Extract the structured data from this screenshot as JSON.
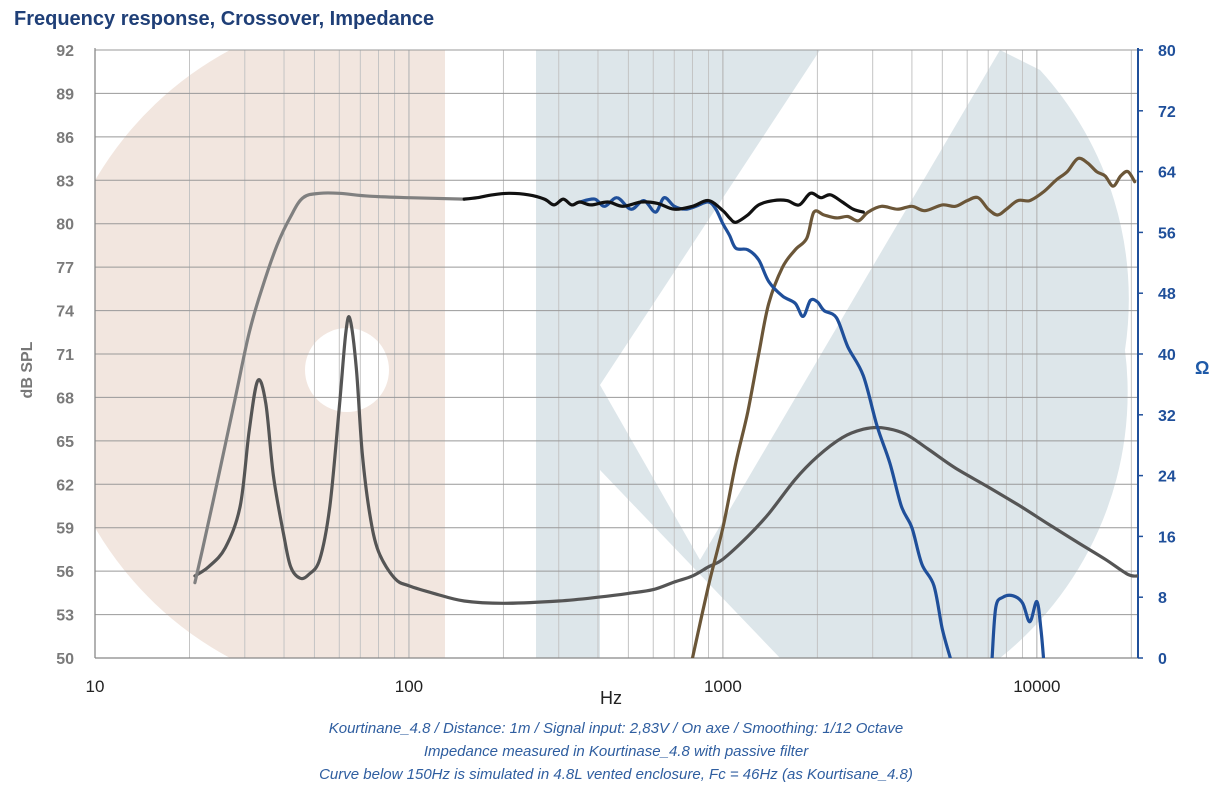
{
  "chart_data": {
    "type": "line",
    "title": "Frequency response, Crossover, Impedance",
    "xlabel": "Hz",
    "ylabel_left": "dB SPL",
    "ylabel_right": "Ω",
    "x_scale": "log",
    "xlim": [
      10,
      21000
    ],
    "ylim_left": [
      50,
      92
    ],
    "ylim_right": [
      0,
      80
    ],
    "x_tick_labels": [
      "10",
      "100",
      "1000",
      "10000"
    ],
    "y_left_ticks": [
      "92",
      "89",
      "86",
      "83",
      "80",
      "77",
      "74",
      "71",
      "68",
      "65",
      "62",
      "59",
      "56",
      "53",
      "50"
    ],
    "y_right_ticks": [
      "80",
      "72",
      "64",
      "56",
      "48",
      "40",
      "32",
      "24",
      "16",
      "8",
      "0"
    ],
    "grid": true,
    "colors": {
      "axis_right": "#1f4f9a",
      "simulated": "#808080",
      "full_system": "#111111",
      "tweeter": "#6b5638",
      "woofer_filtered": "#1f4f9a",
      "impedance": "#555555",
      "watermark_left": "#f2e6df",
      "watermark_right": "#dde6ea"
    },
    "series": [
      {
        "key": "simulated",
        "axis": "left",
        "points": [
          [
            20.8,
            55.2
          ],
          [
            22,
            57.5
          ],
          [
            25,
            63
          ],
          [
            28,
            68
          ],
          [
            31,
            72.5
          ],
          [
            34,
            75.5
          ],
          [
            38,
            78.5
          ],
          [
            42,
            80.5
          ],
          [
            46,
            81.8
          ],
          [
            52,
            82.1
          ],
          [
            60,
            82.1
          ],
          [
            75,
            81.9
          ],
          [
            100,
            81.8
          ],
          [
            150,
            81.7
          ]
        ]
      },
      {
        "key": "full_system",
        "axis": "left",
        "points": [
          [
            150,
            81.7
          ],
          [
            165,
            81.8
          ],
          [
            185,
            82.0
          ],
          [
            210,
            82.1
          ],
          [
            240,
            82.0
          ],
          [
            270,
            81.7
          ],
          [
            290,
            81.3
          ],
          [
            310,
            81.7
          ],
          [
            330,
            81.3
          ],
          [
            350,
            81.5
          ],
          [
            380,
            81.3
          ],
          [
            430,
            81.5
          ],
          [
            480,
            81.2
          ],
          [
            550,
            81.5
          ],
          [
            620,
            81.4
          ],
          [
            700,
            81.0
          ],
          [
            800,
            81.2
          ],
          [
            900,
            81.6
          ],
          [
            1000,
            80.9
          ],
          [
            1050,
            80.4
          ],
          [
            1100,
            80.1
          ],
          [
            1200,
            80.6
          ],
          [
            1300,
            81.3
          ],
          [
            1450,
            81.6
          ],
          [
            1600,
            81.6
          ],
          [
            1750,
            81.3
          ],
          [
            1900,
            82.1
          ],
          [
            2050,
            81.8
          ],
          [
            2200,
            82.0
          ],
          [
            2400,
            81.5
          ],
          [
            2600,
            81.0
          ],
          [
            2800,
            80.8
          ]
        ]
      },
      {
        "key": "woofer_filtered",
        "axis": "left",
        "points": [
          [
            350,
            81.5
          ],
          [
            390,
            81.7
          ],
          [
            420,
            81.2
          ],
          [
            460,
            81.8
          ],
          [
            510,
            81.0
          ],
          [
            560,
            81.6
          ],
          [
            610,
            80.8
          ],
          [
            650,
            81.8
          ],
          [
            700,
            81.2
          ],
          [
            760,
            81.0
          ],
          [
            820,
            81.2
          ],
          [
            900,
            81.5
          ],
          [
            950,
            81.0
          ],
          [
            1000,
            80.0
          ],
          [
            1050,
            79.2
          ],
          [
            1100,
            78.3
          ],
          [
            1200,
            78.2
          ],
          [
            1300,
            77.5
          ],
          [
            1400,
            76.0
          ],
          [
            1550,
            75.0
          ],
          [
            1700,
            74.5
          ],
          [
            1800,
            73.6
          ],
          [
            1900,
            74.7
          ],
          [
            2000,
            74.6
          ],
          [
            2100,
            74.0
          ],
          [
            2300,
            73.5
          ],
          [
            2500,
            71.5
          ],
          [
            2800,
            69.5
          ],
          [
            3100,
            66.0
          ],
          [
            3400,
            63.5
          ],
          [
            3700,
            60.5
          ],
          [
            4000,
            59.0
          ],
          [
            4300,
            56.5
          ],
          [
            4700,
            55.0
          ],
          [
            5000,
            52.0
          ],
          [
            5300,
            50.0
          ]
        ]
      },
      {
        "key": "woofer_filtered_tail",
        "axis": "left",
        "points": [
          [
            7200,
            50.0
          ],
          [
            7400,
            53.5
          ],
          [
            7800,
            54.2
          ],
          [
            8400,
            54.3
          ],
          [
            9000,
            53.8
          ],
          [
            9500,
            52.5
          ],
          [
            10000,
            53.9
          ],
          [
            10300,
            52.0
          ],
          [
            10500,
            50.0
          ]
        ]
      },
      {
        "key": "tweeter",
        "axis": "left",
        "points": [
          [
            800,
            50.0
          ],
          [
            900,
            55.0
          ],
          [
            1000,
            59.0
          ],
          [
            1100,
            63.5
          ],
          [
            1200,
            67.0
          ],
          [
            1300,
            71.0
          ],
          [
            1400,
            74.5
          ],
          [
            1550,
            77.0
          ],
          [
            1700,
            78.2
          ],
          [
            1850,
            79.0
          ],
          [
            1950,
            80.8
          ],
          [
            2100,
            80.6
          ],
          [
            2300,
            80.4
          ],
          [
            2500,
            80.5
          ],
          [
            2700,
            80.2
          ],
          [
            2900,
            80.8
          ],
          [
            3200,
            81.2
          ],
          [
            3600,
            81.0
          ],
          [
            4000,
            81.2
          ],
          [
            4400,
            80.9
          ],
          [
            5000,
            81.3
          ],
          [
            5500,
            81.2
          ],
          [
            6000,
            81.6
          ],
          [
            6500,
            81.8
          ],
          [
            7000,
            81.0
          ],
          [
            7500,
            80.6
          ],
          [
            8000,
            81.0
          ],
          [
            8700,
            81.6
          ],
          [
            9500,
            81.6
          ],
          [
            10500,
            82.2
          ],
          [
            11500,
            83.0
          ],
          [
            12500,
            83.6
          ],
          [
            13500,
            84.5
          ],
          [
            14500,
            84.2
          ],
          [
            15500,
            83.6
          ],
          [
            16500,
            83.3
          ],
          [
            17500,
            82.6
          ],
          [
            18500,
            83.3
          ],
          [
            19500,
            83.6
          ],
          [
            20500,
            82.9
          ]
        ]
      },
      {
        "key": "impedance",
        "axis": "right",
        "points": [
          [
            20.8,
            10.8
          ],
          [
            23,
            12
          ],
          [
            26,
            14.5
          ],
          [
            29,
            20
          ],
          [
            31,
            30
          ],
          [
            33,
            36.5
          ],
          [
            35,
            33.5
          ],
          [
            37,
            24
          ],
          [
            40,
            16
          ],
          [
            42,
            12
          ],
          [
            45,
            10.5
          ],
          [
            48,
            11
          ],
          [
            52,
            13
          ],
          [
            56,
            20
          ],
          [
            60,
            33
          ],
          [
            63,
            43
          ],
          [
            65,
            44.5
          ],
          [
            68,
            38
          ],
          [
            71,
            27
          ],
          [
            75,
            19
          ],
          [
            80,
            14
          ],
          [
            90,
            10.5
          ],
          [
            100,
            9.5
          ],
          [
            120,
            8.5
          ],
          [
            150,
            7.5
          ],
          [
            200,
            7.2
          ],
          [
            300,
            7.5
          ],
          [
            400,
            8
          ],
          [
            500,
            8.5
          ],
          [
            600,
            9
          ],
          [
            700,
            10
          ],
          [
            800,
            10.8
          ],
          [
            900,
            12
          ],
          [
            1000,
            13
          ],
          [
            1200,
            16
          ],
          [
            1400,
            19
          ],
          [
            1700,
            23.5
          ],
          [
            2000,
            26.5
          ],
          [
            2400,
            29
          ],
          [
            2800,
            30.1
          ],
          [
            3200,
            30.3
          ],
          [
            3800,
            29.5
          ],
          [
            4500,
            27.5
          ],
          [
            5500,
            25
          ],
          [
            7000,
            22.5
          ],
          [
            9000,
            19.8
          ],
          [
            11000,
            17.5
          ],
          [
            13500,
            15.2
          ],
          [
            16500,
            13
          ],
          [
            19500,
            11
          ],
          [
            21000,
            10.8
          ]
        ]
      }
    ]
  },
  "notes": [
    "Kourtinane_4.8 / Distance: 1m / Signal input: 2,83V / On axe / Smoothing: 1/12 Octave",
    "Impedance measured in Kourtinase_4.8 with passive filter",
    "Curve below 150Hz is simulated in 4.8L vented enclosure, Fc = 46Hz (as Kourtisane_4.8)"
  ]
}
